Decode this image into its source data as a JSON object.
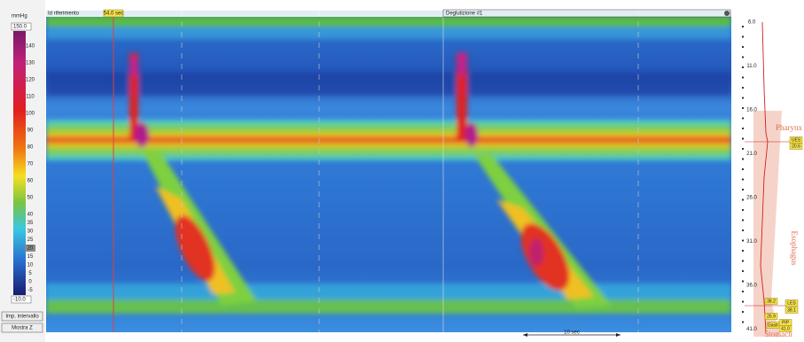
{
  "color_scale": {
    "unit": "mmHg",
    "max": "150.0",
    "min": "-10.0",
    "labels": [
      "140",
      "130",
      "120",
      "110",
      "100",
      "90",
      "80",
      "70",
      "60",
      "50",
      "40",
      "35",
      "30",
      "25",
      "20",
      "15",
      "10",
      "5",
      "0",
      "-5"
    ]
  },
  "markers": {
    "reference": "Id riferimento",
    "reference_time": "54.0 sec",
    "swallow": "Deglutizione #1",
    "scale_bar": "10 sec"
  },
  "buttons": [
    "Imp. intervallo",
    "Mostra Z"
  ],
  "depth_panel": {
    "depths": [
      "6.0",
      "11.0",
      "16.0",
      "21.0",
      "26.0",
      "31.0",
      "36.0",
      "41.0"
    ],
    "regions": [
      "Pharynx",
      "Esophagus",
      "Stomach"
    ],
    "tags": [
      "UES",
      "20.6",
      "LES",
      "38.1",
      "38.2",
      "25.9",
      "PIP",
      "41.0",
      "Gastr"
    ]
  }
}
